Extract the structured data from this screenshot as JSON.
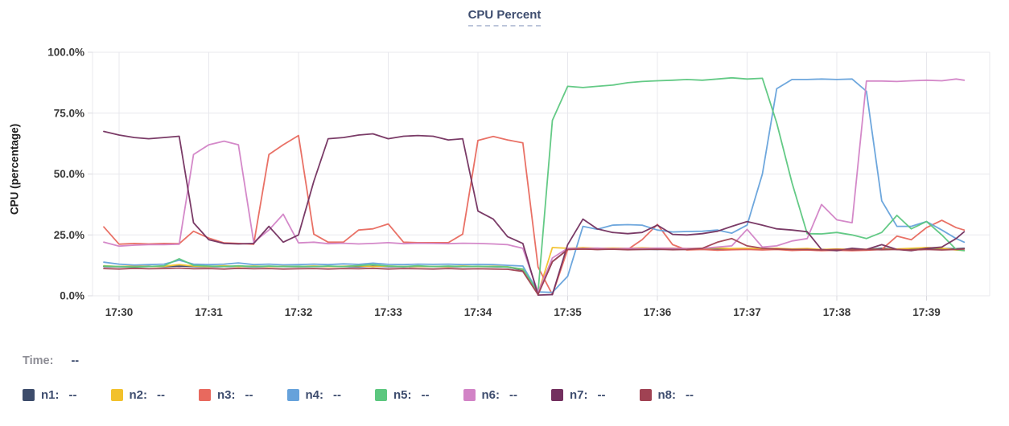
{
  "header": {
    "title": "CPU Percent"
  },
  "time_readout": {
    "label": "Time:",
    "value": "--"
  },
  "legend": {
    "placeholder": "--",
    "separator": ":"
  },
  "palette": {
    "title_text": "#3e4d6f",
    "muted_label": "#8d8d95",
    "axis_text": "#3a3a3a",
    "gridline": "#e8e8ed",
    "tick_mark": "#d9d9df"
  },
  "chart_data": {
    "type": "line",
    "title": "CPU Percent",
    "xlabel": "",
    "ylabel": "CPU (percentage)",
    "ylim": [
      0,
      100
    ],
    "grid": true,
    "legend_position": "bottom",
    "y_axis": {
      "tick_values": [
        0,
        25,
        50,
        75,
        100
      ],
      "tick_labels": [
        "0.0%",
        "25.0%",
        "50.0%",
        "75.0%",
        "100.0%"
      ]
    },
    "x_axis": {
      "tick_minutes": [
        30,
        31,
        32,
        33,
        34,
        35,
        36,
        37,
        38,
        39
      ],
      "tick_labels": [
        "17:30",
        "17:31",
        "17:32",
        "17:33",
        "17:34",
        "17:35",
        "17:36",
        "17:37",
        "17:38",
        "17:39"
      ]
    },
    "x_minutes": [
      29.83,
      30,
      30.17,
      30.33,
      30.5,
      30.67,
      30.83,
      31,
      31.17,
      31.33,
      31.5,
      31.67,
      31.83,
      32,
      32.17,
      32.33,
      32.5,
      32.67,
      32.83,
      33,
      33.17,
      33.33,
      33.5,
      33.67,
      33.83,
      34,
      34.17,
      34.33,
      34.5,
      34.67,
      34.83,
      35,
      35.17,
      35.33,
      35.5,
      35.67,
      35.83,
      36,
      36.17,
      36.33,
      36.5,
      36.67,
      36.83,
      37,
      37.17,
      37.33,
      37.5,
      37.67,
      37.83,
      38,
      38.17,
      38.33,
      38.5,
      38.67,
      38.83,
      39,
      39.17,
      39.33,
      39.42
    ],
    "series": [
      {
        "name": "n1",
        "color": "#3d4c6b",
        "values": [
          12,
          11.9,
          12,
          12.1,
          11.9,
          12.2,
          12,
          11.9,
          12,
          12.1,
          11.9,
          12,
          12,
          11.9,
          12,
          12.1,
          12,
          11.9,
          12.2,
          12,
          11.9,
          12,
          12,
          11.9,
          12,
          12,
          11.9,
          11.8,
          10.5,
          0.8,
          14,
          19,
          19.3,
          19,
          19.2,
          19,
          19.1,
          19,
          19.2,
          19,
          19.1,
          19,
          19,
          19.2,
          19,
          19.1,
          19,
          19,
          18.8,
          19,
          18.9,
          19,
          19.5,
          19,
          19.2,
          19.2,
          19.4,
          19.3,
          19.5
        ]
      },
      {
        "name": "n2",
        "color": "#f2c12c",
        "values": [
          12.3,
          12,
          12.2,
          12,
          12.1,
          12.8,
          12.2,
          12,
          12.3,
          12,
          12.2,
          12,
          12.1,
          12,
          12.2,
          12,
          12.1,
          12.3,
          12,
          12.2,
          12,
          12.1,
          12,
          12,
          12.2,
          12,
          12.1,
          11.9,
          10.8,
          0.9,
          19.8,
          19.5,
          19.8,
          19.5,
          19.6,
          19.5,
          19.7,
          19.5,
          19.6,
          19.4,
          19.5,
          19.6,
          19.4,
          19.5,
          19.3,
          19.5,
          19.2,
          19.4,
          19,
          19.2,
          19,
          19.1,
          19,
          19.2,
          19.5,
          19.8,
          19.5,
          18.8,
          18.6
        ]
      },
      {
        "name": "n3",
        "color": "#e8695e",
        "values": [
          28.3,
          21.2,
          21.5,
          21.3,
          21.5,
          21.4,
          26.5,
          23.7,
          21.7,
          21.5,
          21.2,
          58,
          62,
          65.8,
          25.3,
          22,
          22,
          27,
          27.5,
          29.5,
          22,
          21.8,
          21.8,
          21.8,
          25.3,
          63.8,
          65.4,
          64,
          62.8,
          11.8,
          0.5,
          19,
          19.2,
          19,
          19.3,
          19,
          23,
          29.3,
          21,
          18.8,
          19,
          18.7,
          18.9,
          19,
          18.8,
          19,
          18.6,
          18.8,
          18.5,
          18.7,
          18.5,
          18.7,
          19,
          24.5,
          23,
          28,
          31,
          28,
          27
        ]
      },
      {
        "name": "n4",
        "color": "#66a2db",
        "values": [
          13.8,
          13,
          12.6,
          12.8,
          13,
          14.6,
          13,
          12.8,
          13,
          13.5,
          12.8,
          13,
          12.7,
          12.8,
          13,
          12.8,
          13.1,
          12.9,
          13.4,
          12.9,
          12.8,
          13,
          12.9,
          13,
          12.8,
          12.9,
          12.8,
          12.5,
          12.2,
          1.6,
          1.4,
          8,
          28.5,
          27.3,
          29,
          29.2,
          29,
          27,
          26.2,
          26.4,
          26.5,
          27,
          25.7,
          29,
          50,
          85,
          88.8,
          88.8,
          89,
          88.8,
          89,
          84,
          39,
          28.5,
          28.5,
          30.5,
          27,
          23.5,
          22
        ]
      },
      {
        "name": "n5",
        "color": "#5cc77f",
        "values": [
          12.2,
          12,
          11.8,
          12,
          12.3,
          15.2,
          12.5,
          12.2,
          12,
          12.3,
          12,
          12.2,
          12,
          12.1,
          12,
          12.2,
          12,
          12.4,
          12.8,
          12.2,
          12,
          12.3,
          12,
          12.2,
          12,
          12.1,
          12,
          11.8,
          11,
          1.5,
          72,
          86,
          85.5,
          86,
          86.5,
          87.5,
          88,
          88.3,
          88.5,
          88.8,
          88.5,
          89,
          89.5,
          89,
          89.3,
          71,
          46.4,
          25.5,
          25.4,
          26,
          25,
          23.5,
          26,
          33,
          27.5,
          30.5,
          25,
          19,
          18.5
        ]
      },
      {
        "name": "n6",
        "color": "#d283c6",
        "values": [
          22,
          20.4,
          20.8,
          21,
          21,
          21.2,
          58,
          62,
          63.5,
          62,
          22,
          27,
          33.5,
          21.7,
          22,
          21.4,
          21.6,
          21.3,
          21.5,
          21.8,
          21.4,
          21.6,
          21.5,
          21.4,
          21.6,
          21.5,
          21.3,
          21,
          19.5,
          1.5,
          15.5,
          19.5,
          19.4,
          19.6,
          19.3,
          19.5,
          19.4,
          19.6,
          19.5,
          19.4,
          19.5,
          20,
          20.5,
          27.3,
          20,
          20.5,
          22.5,
          23.5,
          37.5,
          31.2,
          30,
          88.2,
          88.2,
          88,
          88.3,
          88.5,
          88.3,
          89,
          88.5
        ]
      },
      {
        "name": "n7",
        "color": "#73305f",
        "values": [
          67.5,
          66,
          65,
          64.5,
          65,
          65.5,
          30,
          23,
          21.5,
          21.3,
          21.5,
          28.5,
          22,
          25,
          47,
          64.5,
          65,
          66,
          66.5,
          64.5,
          65.5,
          65.8,
          65.5,
          64,
          64.5,
          34.8,
          31.5,
          24.3,
          21.5,
          0.3,
          0.5,
          21,
          31.5,
          27.5,
          26,
          25.5,
          26,
          29,
          25.2,
          25,
          25.5,
          26.5,
          28.5,
          30.5,
          29,
          27.5,
          27,
          26.3,
          19,
          18.5,
          19.5,
          19,
          21,
          19,
          18.5,
          19.5,
          20,
          23.5,
          26.3
        ]
      },
      {
        "name": "n8",
        "color": "#a04253",
        "values": [
          11.2,
          11,
          11.3,
          11.1,
          11.2,
          11.4,
          11.1,
          11.2,
          11,
          11.3,
          11.1,
          11.2,
          11,
          11.1,
          11.2,
          11,
          11.2,
          11.1,
          11.3,
          11,
          11.2,
          11.1,
          11,
          11.2,
          11,
          11.1,
          11,
          10.9,
          10,
          0.5,
          14,
          19,
          19.2,
          19,
          19.1,
          18.9,
          19,
          19.1,
          18.9,
          19,
          19.5,
          22,
          23.5,
          20.5,
          19.5,
          19.2,
          19,
          19,
          18.8,
          19,
          18.8,
          19,
          18.9,
          19,
          18.8,
          19,
          18.8,
          19,
          19.2
        ]
      }
    ]
  }
}
